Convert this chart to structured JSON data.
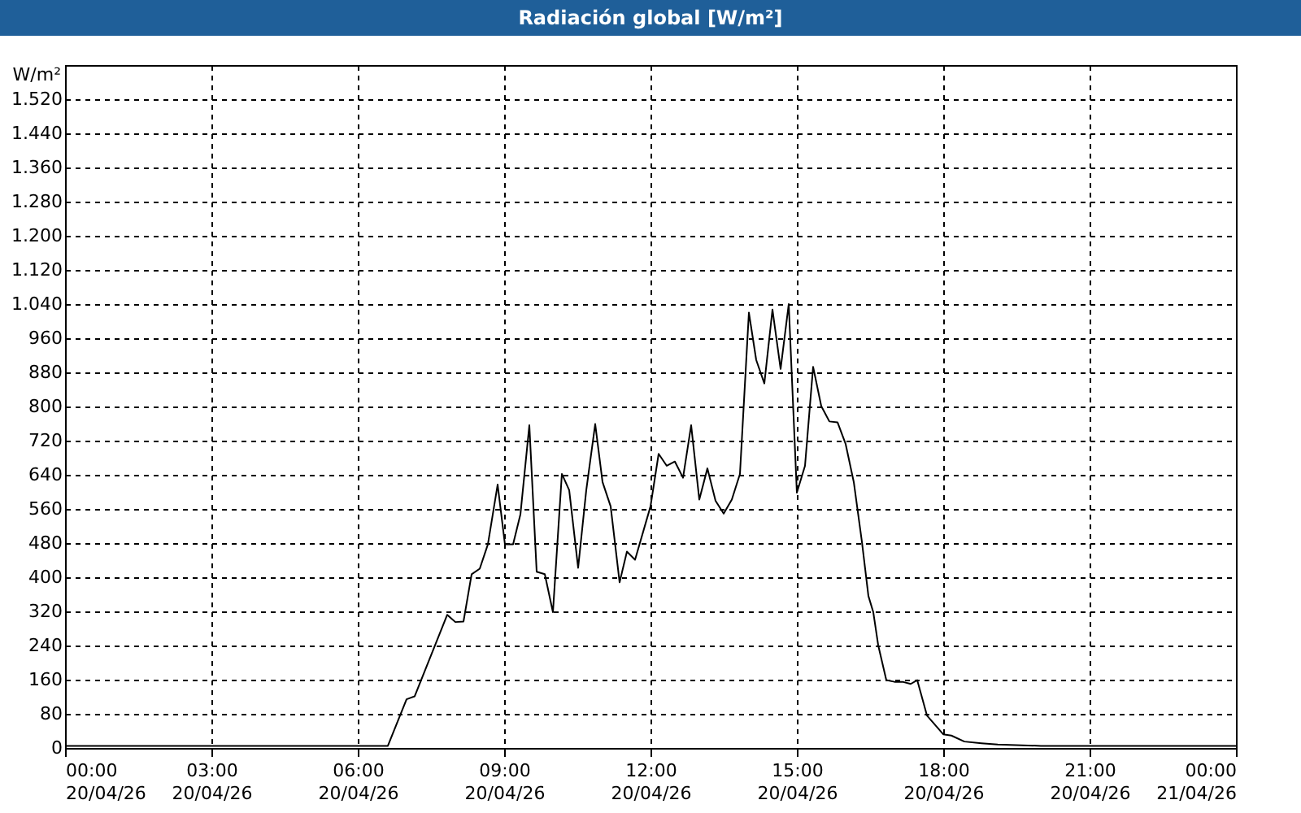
{
  "chart_data": {
    "type": "line",
    "title": "Radiación global [W/m²]",
    "ylabel": "W/m²",
    "x": [
      "--04-20T00:00",
      "--04-20T01:00",
      "--04-20T02:00",
      "--04-20T03:00",
      "--04-20T04:00",
      "--04-20T05:00",
      "--04-20T06:00",
      "--04-20T06:37",
      "--04-20T07:00",
      "--04-20T07:10",
      "--04-20T07:50",
      "--04-20T08:00",
      "--04-20T08:10",
      "--04-20T08:20",
      "--04-20T08:30",
      "--04-20T08:40",
      "--04-20T08:52",
      "--04-20T09:01",
      "--04-20T09:11",
      "--04-20T09:20",
      "--04-20T09:31",
      "--04-20T09:40",
      "--04-20T09:50",
      "--04-20T10:00",
      "--04-20T10:11",
      "--04-20T10:20",
      "--04-20T10:31",
      "--04-20T10:41",
      "--04-20T10:52",
      "--04-20T11:01",
      "--04-20T11:11",
      "--04-20T11:22",
      "--04-20T11:31",
      "--04-20T11:41",
      "--04-20T12:00",
      "--04-20T12:10",
      "--04-20T12:20",
      "--04-20T12:30",
      "--04-20T12:40",
      "--04-20T12:50",
      "--04-20T13:00",
      "--04-20T13:10",
      "--04-20T13:20",
      "--04-20T13:30",
      "--04-20T13:40",
      "--04-20T13:50",
      "--04-20T14:01",
      "--04-20T14:10",
      "--04-20T14:20",
      "--04-20T14:30",
      "--04-20T14:40",
      "--04-20T14:50",
      "--04-20T15:00",
      "--04-20T15:10",
      "--04-20T15:20",
      "--04-20T15:30",
      "--04-20T15:40",
      "--04-20T15:50",
      "--04-20T16:00",
      "--04-20T16:10",
      "--04-20T16:20",
      "--04-20T16:28",
      "--04-20T16:34",
      "--04-20T16:40",
      "--04-20T16:50",
      "--04-20T17:00",
      "--04-20T17:10",
      "--04-20T17:20",
      "--04-20T17:28",
      "--04-20T17:40",
      "--04-20T18:00",
      "--04-20T18:10",
      "--04-20T18:26",
      "--04-20T18:47",
      "--04-20T19:07",
      "--04-20T20:00",
      "--04-20T21:00",
      "--04-20T22:00",
      "--04-20T23:00",
      "--04-21T00:00"
    ],
    "series": [
      {
        "color": "#000000",
        "values": [
          5,
          5,
          5,
          5,
          5,
          5,
          5,
          5,
          114,
          121,
          312,
          295,
          296,
          407,
          420,
          477,
          617,
          477,
          477,
          547,
          756,
          413,
          407,
          318,
          642,
          604,
          422,
          604,
          759,
          623,
          566,
          388,
          460,
          441,
          566,
          689,
          661,
          671,
          633,
          756,
          582,
          655,
          579,
          549,
          582,
          642,
          1020,
          909,
          854,
          1027,
          888,
          1040,
          598,
          661,
          893,
          801,
          765,
          763,
          712,
          623,
          483,
          356,
          318,
          241,
          159,
          155,
          155,
          150,
          159,
          76,
          32,
          29,
          15,
          11,
          8,
          5,
          5,
          5,
          5,
          5
        ]
      }
    ],
    "xlim": [
      "--04-20T00:00",
      "--04-21T00:00"
    ],
    "xticks": [
      {
        "value": "--04-20T00:00",
        "label": "00:00\n20/04/26"
      },
      {
        "value": "--04-20T03:00",
        "label": "03:00\n20/04/26"
      },
      {
        "value": "--04-20T06:00",
        "label": "06:00\n20/04/26"
      },
      {
        "value": "--04-20T09:00",
        "label": "09:00\n20/04/26"
      },
      {
        "value": "--04-20T12:00",
        "label": "12:00\n20/04/26"
      },
      {
        "value": "--04-20T15:00",
        "label": "15:00\n20/04/26"
      },
      {
        "value": "--04-20T18:00",
        "label": "18:00\n20/04/26"
      },
      {
        "value": "--04-20T21:00",
        "label": "21:00\n20/04/26"
      },
      {
        "value": "--04-21T00:00",
        "label": "00:00\n21/04/26"
      }
    ],
    "ylim": [
      0,
      1600
    ],
    "yticks": [
      {
        "value": 0,
        "label": "0"
      },
      {
        "value": 80,
        "label": "80"
      },
      {
        "value": 160,
        "label": "160"
      },
      {
        "value": 240,
        "label": "240"
      },
      {
        "value": 320,
        "label": "320"
      },
      {
        "value": 400,
        "label": "400"
      },
      {
        "value": 480,
        "label": "480"
      },
      {
        "value": 560,
        "label": "560"
      },
      {
        "value": 640,
        "label": "640"
      },
      {
        "value": 720,
        "label": "720"
      },
      {
        "value": 800,
        "label": "800"
      },
      {
        "value": 880,
        "label": "880"
      },
      {
        "value": 960,
        "label": "960"
      },
      {
        "value": 1040,
        "label": "1.040"
      },
      {
        "value": 1120,
        "label": "1.120"
      },
      {
        "value": 1200,
        "label": "1.200"
      },
      {
        "value": 1280,
        "label": "1.280"
      },
      {
        "value": 1360,
        "label": "1.360"
      },
      {
        "value": 1440,
        "label": "1.440"
      },
      {
        "value": 1520,
        "label": "1.520"
      }
    ],
    "grid": true
  }
}
